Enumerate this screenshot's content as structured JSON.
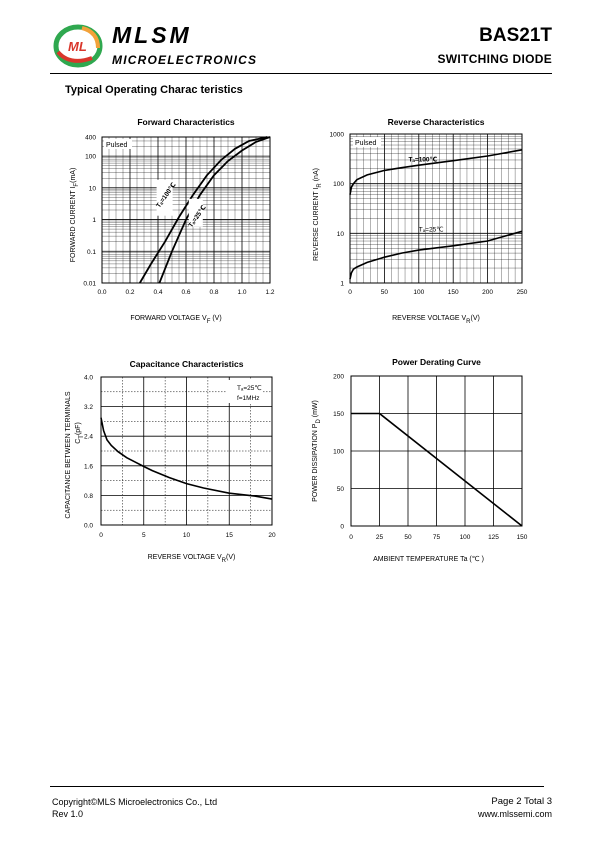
{
  "header": {
    "brand": "MLSM",
    "brand_sub": "MICROELECTRONICS",
    "logo_letters": "ML",
    "part_number": "BAS21T",
    "part_type": "SWITCHING  DIODE"
  },
  "section_title": "Typical Operating Charac teristics",
  "colors": {
    "logo_green": "#2fa84f",
    "logo_red": "#d9362b",
    "logo_orange": "#f2a23a",
    "grid": "#000000"
  },
  "chart_data": [
    {
      "id": "forward",
      "type": "line",
      "title": "Forward  Characteristics",
      "xlabel": "FORWARD VOLTAGE  V",
      "xlabel_sub": "F",
      "xlabel_unit": " (V)",
      "ylabel": "FORWARD CURRENT  I",
      "ylabel_sub": "F",
      "ylabel_unit": "(mA)",
      "xlim": [
        0,
        1.2
      ],
      "ylim": [
        0.01,
        400
      ],
      "yscale": "log",
      "x_ticks": [
        "0.0",
        "0.2",
        "0.4",
        "0.6",
        "0.8",
        "1.0",
        "1.2"
      ],
      "y_ticks": [
        {
          "v": 0.01,
          "label": "0.01"
        },
        {
          "v": 0.1,
          "label": "0.1"
        },
        {
          "v": 1,
          "label": "1"
        },
        {
          "v": 10,
          "label": "10"
        },
        {
          "v": 100,
          "label": "100"
        },
        {
          "v": 400,
          "label": "400"
        }
      ],
      "annotation": "Pulsed",
      "grid": true,
      "series": [
        {
          "name": "Ta=100°C",
          "x": [
            0.27,
            0.35,
            0.45,
            0.55,
            0.65,
            0.75,
            0.85,
            0.95,
            1.05,
            1.18
          ],
          "y": [
            0.01,
            0.04,
            0.2,
            1.2,
            6,
            25,
            75,
            170,
            300,
            400
          ]
        },
        {
          "name": "Ta=25°C",
          "x": [
            0.41,
            0.5,
            0.6,
            0.7,
            0.8,
            0.9,
            1.0,
            1.1,
            1.2
          ],
          "y": [
            0.01,
            0.1,
            1,
            6,
            25,
            70,
            150,
            280,
            400
          ]
        }
      ],
      "labels": [
        "Tₐ=100℃",
        "Tₐ=25℃"
      ]
    },
    {
      "id": "reverse",
      "type": "line",
      "title": "Reverse  Characteristics",
      "xlabel": "REVERSE VOLTAGE   V",
      "xlabel_sub": "R",
      "xlabel_unit": "(V)",
      "ylabel": "REVERSE CURRENT  I",
      "ylabel_sub": "R",
      "ylabel_unit": " (nA)",
      "xlim": [
        0,
        250
      ],
      "ylim": [
        1,
        1000
      ],
      "yscale": "log",
      "x_ticks": [
        "0",
        "50",
        "100",
        "150",
        "200",
        "250"
      ],
      "y_ticks": [
        {
          "v": 1,
          "label": "1"
        },
        {
          "v": 10,
          "label": "10"
        },
        {
          "v": 100,
          "label": "100"
        },
        {
          "v": 1000,
          "label": "1000"
        }
      ],
      "annotation": "Pulsed",
      "grid": true,
      "series": [
        {
          "name": "Ta=100°C",
          "x": [
            0,
            2,
            5,
            10,
            25,
            50,
            75,
            100,
            150,
            200,
            250
          ],
          "y": [
            60,
            85,
            100,
            120,
            150,
            185,
            210,
            235,
            290,
            360,
            480
          ]
        },
        {
          "name": "Ta=25°C",
          "x": [
            0,
            2,
            5,
            10,
            25,
            50,
            75,
            100,
            150,
            200,
            250
          ],
          "y": [
            1.2,
            1.6,
            1.9,
            2.1,
            2.6,
            3.3,
            4.0,
            4.6,
            5.6,
            7.0,
            11
          ]
        }
      ],
      "labels": [
        "Tₐ=100℃",
        "Tₐ=25℃"
      ]
    },
    {
      "id": "capacitance",
      "type": "line",
      "title": "Capacitance Characteristics",
      "xlabel": "REVERSE VOLTAGE   V",
      "xlabel_sub": "R",
      "xlabel_unit": "(V)",
      "ylabel": "CAPACITANCE BETWEEN TERMINALS",
      "ylabel2": "C",
      "ylabel2_sub": "T",
      "ylabel2_unit": "(pF)",
      "xlim": [
        0,
        20
      ],
      "ylim": [
        0,
        4.0
      ],
      "x_ticks": [
        "0",
        "5",
        "10",
        "15",
        "20"
      ],
      "y_ticks": [
        "0.0",
        "0.8",
        "1.6",
        "2.4",
        "3.2",
        "4.0"
      ],
      "annotation_1": "Tₐ=25℃",
      "annotation_2": "f=1MHz",
      "grid": true,
      "series": [
        {
          "name": "Ta=25°C",
          "x": [
            0,
            0.3,
            0.7,
            1.2,
            2,
            3,
            4,
            5,
            6,
            8,
            10,
            12,
            15,
            18,
            20
          ],
          "y": [
            2.9,
            2.55,
            2.3,
            2.15,
            1.98,
            1.82,
            1.7,
            1.58,
            1.47,
            1.28,
            1.12,
            1.0,
            0.86,
            0.78,
            0.7
          ]
        }
      ]
    },
    {
      "id": "derating",
      "type": "line",
      "title": "Power Derating Curve",
      "xlabel": "AMBIENT TEMPERATURE     Ta  (℃ )",
      "ylabel": "POWER  DISSIPATION  P",
      "ylabel_sub": "D",
      "ylabel_unit": " (mW)",
      "xlim": [
        0,
        150
      ],
      "ylim": [
        0,
        200
      ],
      "x_ticks": [
        "0",
        "25",
        "50",
        "75",
        "100",
        "125",
        "150"
      ],
      "y_ticks": [
        "0",
        "50",
        "100",
        "150",
        "200"
      ],
      "grid": true,
      "series": [
        {
          "name": "Pd",
          "x": [
            0,
            25,
            150
          ],
          "y": [
            150,
            150,
            0
          ]
        }
      ]
    }
  ],
  "footer": {
    "copyright": "Copyright©MLS Microelectronics Co., Ltd",
    "rev": "Rev 1.0",
    "page_info": "Page 2 Total 3",
    "website": "www.mlssemi.com"
  }
}
